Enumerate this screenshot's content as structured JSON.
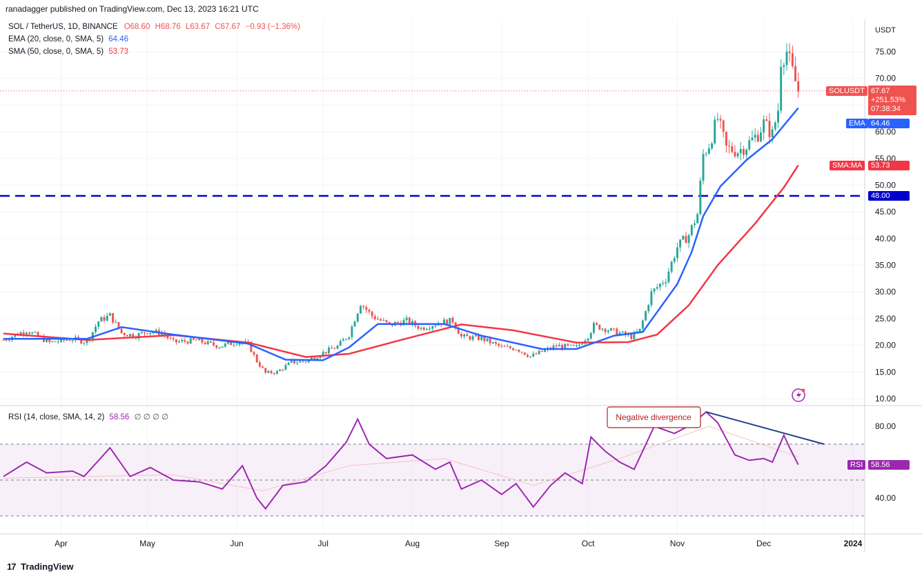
{
  "header": {
    "publisher": "ranadagger published on TradingView.com, Dec 13, 2023 16:21 UTC"
  },
  "price_legend": {
    "symbol": "SOL / TetherUS, 1D, BINANCE",
    "open": "O68.60",
    "high": "H68.76",
    "low": "L63.67",
    "close": "C67.67",
    "change": "−0.93 (−1.36%)",
    "ema_label": "EMA (20, close, 0, SMA, 5)",
    "ema_value": "64.46",
    "sma_label": "SMA (50, close, 0, SMA, 5)",
    "sma_value": "53.73"
  },
  "rsi_legend": {
    "label": "RSI (14, close, SMA, 14, 2)",
    "value": "58.56",
    "extras": "∅ ∅ ∅ ∅"
  },
  "price_axis": {
    "currency": "USDT"
  },
  "price_tags": {
    "symbol_tag": "SOLUSDT",
    "price": "67.67",
    "change_pct": "+251.53%",
    "countdown": "07:38:34",
    "ema_tag": "EMA",
    "ema_value": "64.46",
    "sma_tag": "SMA:MA",
    "sma_value": "53.73",
    "level": "48.00",
    "rsi_tag": "RSI",
    "rsi_value": "58.56"
  },
  "annotation": "Negative divergence",
  "footer": {
    "brand": "TradingView"
  },
  "colors": {
    "up": "#26a69a",
    "down": "#ef5350",
    "ema": "#2962ff",
    "sma": "#f23645",
    "rsi": "#9c27b0",
    "level_line": "#0000cc",
    "divergence": "#1e3f8a"
  },
  "chart_data": {
    "type": "candlestick",
    "title": "SOL / TetherUS, 1D, BINANCE",
    "price_axis_ticks": [
      10,
      15,
      20,
      25,
      30,
      35,
      40,
      45,
      50,
      55,
      60,
      65,
      70,
      75
    ],
    "price_tick_labels": [
      "10.00",
      "15.00",
      "20.00",
      "25.00",
      "30.00",
      "35.00",
      "40.00",
      "45.00",
      "50.00",
      "55.00",
      "60.00",
      "",
      "70.00",
      "75.00"
    ],
    "rsi_ticks": [
      40,
      80
    ],
    "rsi_tick_labels": [
      "40.00",
      "80.00"
    ],
    "rsi_bands": [
      30,
      50,
      70
    ],
    "x_labels": [
      "Apr",
      "May",
      "Jun",
      "Jul",
      "Aug",
      "Sep",
      "Oct",
      "Nov",
      "Dec",
      "2024"
    ],
    "x_label_dates": [
      "2023-04-01",
      "2023-05-01",
      "2023-06-01",
      "2023-07-01",
      "2023-08-01",
      "2023-09-01",
      "2023-10-01",
      "2023-11-01",
      "2023-12-01",
      "2024-01-01"
    ],
    "horizontal_level": 48.0,
    "close_path": [
      [
        "2023-03-12",
        21
      ],
      [
        "2023-03-20",
        22.8
      ],
      [
        "2023-03-28",
        20.5
      ],
      [
        "2023-04-05",
        21.2
      ],
      [
        "2023-04-10",
        20.6
      ],
      [
        "2023-04-14",
        24.5
      ],
      [
        "2023-04-18",
        25.6
      ],
      [
        "2023-04-22",
        22.3
      ],
      [
        "2023-04-27",
        21.8
      ],
      [
        "2023-05-01",
        22.6
      ],
      [
        "2023-05-06",
        22.3
      ],
      [
        "2023-05-10",
        20.6
      ],
      [
        "2023-05-18",
        20.9
      ],
      [
        "2023-05-26",
        19.8
      ],
      [
        "2023-06-01",
        20.6
      ],
      [
        "2023-06-05",
        20.2
      ],
      [
        "2023-06-08",
        17.0
      ],
      [
        "2023-06-11",
        14.8
      ],
      [
        "2023-06-15",
        15.0
      ],
      [
        "2023-06-20",
        16.8
      ],
      [
        "2023-06-25",
        17.0
      ],
      [
        "2023-07-01",
        18.6
      ],
      [
        "2023-07-06",
        19.8
      ],
      [
        "2023-07-10",
        22.0
      ],
      [
        "2023-07-14",
        27.9
      ],
      [
        "2023-07-18",
        25.5
      ],
      [
        "2023-07-24",
        23.8
      ],
      [
        "2023-07-30",
        24.6
      ],
      [
        "2023-08-04",
        23.2
      ],
      [
        "2023-08-10",
        24.2
      ],
      [
        "2023-08-15",
        24.6
      ],
      [
        "2023-08-18",
        21.6
      ],
      [
        "2023-08-25",
        21.3
      ],
      [
        "2023-09-01",
        19.6
      ],
      [
        "2023-09-06",
        19.4
      ],
      [
        "2023-09-11",
        17.9
      ],
      [
        "2023-09-15",
        18.8
      ],
      [
        "2023-09-20",
        19.9
      ],
      [
        "2023-09-27",
        19.6
      ],
      [
        "2023-10-01",
        21.8
      ],
      [
        "2023-10-03",
        23.7
      ],
      [
        "2023-10-10",
        22.6
      ],
      [
        "2023-10-16",
        21.6
      ],
      [
        "2023-10-19",
        22.8
      ],
      [
        "2023-10-23",
        29.8
      ],
      [
        "2023-10-28",
        32.5
      ],
      [
        "2023-11-01",
        38.4
      ],
      [
        "2023-11-05",
        40.7
      ],
      [
        "2023-11-08",
        44.6
      ],
      [
        "2023-11-10",
        55.7
      ],
      [
        "2023-11-12",
        57.6
      ],
      [
        "2023-11-15",
        62.5
      ],
      [
        "2023-11-18",
        56.9
      ],
      [
        "2023-11-22",
        56.4
      ],
      [
        "2023-11-25",
        57.4
      ],
      [
        "2023-11-29",
        59.6
      ],
      [
        "2023-12-01",
        61.6
      ],
      [
        "2023-12-04",
        59.5
      ],
      [
        "2023-12-06",
        64.2
      ],
      [
        "2023-12-07",
        73.5
      ],
      [
        "2023-12-09",
        75.1
      ],
      [
        "2023-12-11",
        71.2
      ],
      [
        "2023-12-13",
        67.67
      ]
    ],
    "ema20_path": [
      [
        "2023-03-12",
        21.2
      ],
      [
        "2023-04-10",
        21.2
      ],
      [
        "2023-04-22",
        23.4
      ],
      [
        "2023-05-10",
        22.0
      ],
      [
        "2023-06-05",
        20.3
      ],
      [
        "2023-06-18",
        17.3
      ],
      [
        "2023-07-01",
        17.2
      ],
      [
        "2023-07-10",
        19.6
      ],
      [
        "2023-07-20",
        24.0
      ],
      [
        "2023-08-12",
        24.0
      ],
      [
        "2023-08-25",
        21.8
      ],
      [
        "2023-09-15",
        19.3
      ],
      [
        "2023-09-27",
        19.3
      ],
      [
        "2023-10-10",
        21.8
      ],
      [
        "2023-10-20",
        22.5
      ],
      [
        "2023-11-01",
        31.5
      ],
      [
        "2023-11-06",
        37.5
      ],
      [
        "2023-11-10",
        44.2
      ],
      [
        "2023-11-16",
        49.8
      ],
      [
        "2023-11-25",
        54.7
      ],
      [
        "2023-12-04",
        58.6
      ],
      [
        "2023-12-13",
        64.46
      ]
    ],
    "sma50_path": [
      [
        "2023-03-12",
        22.2
      ],
      [
        "2023-04-10",
        21.0
      ],
      [
        "2023-05-10",
        21.9
      ],
      [
        "2023-06-05",
        20.5
      ],
      [
        "2023-06-25",
        17.8
      ],
      [
        "2023-07-10",
        18.4
      ],
      [
        "2023-07-28",
        21.0
      ],
      [
        "2023-08-18",
        23.9
      ],
      [
        "2023-09-05",
        22.8
      ],
      [
        "2023-09-27",
        20.5
      ],
      [
        "2023-10-15",
        20.6
      ],
      [
        "2023-10-25",
        22.0
      ],
      [
        "2023-11-05",
        27.5
      ],
      [
        "2023-11-15",
        35.0
      ],
      [
        "2023-11-28",
        42.8
      ],
      [
        "2023-12-08",
        49.6
      ],
      [
        "2023-12-13",
        53.73
      ]
    ],
    "rsi_path": [
      [
        "2023-03-12",
        52
      ],
      [
        "2023-03-20",
        60
      ],
      [
        "2023-03-27",
        54
      ],
      [
        "2023-04-05",
        55
      ],
      [
        "2023-04-09",
        52
      ],
      [
        "2023-04-18",
        68
      ],
      [
        "2023-04-25",
        52
      ],
      [
        "2023-05-02",
        57
      ],
      [
        "2023-05-10",
        50
      ],
      [
        "2023-05-19",
        49
      ],
      [
        "2023-05-27",
        45
      ],
      [
        "2023-06-03",
        58
      ],
      [
        "2023-06-08",
        40
      ],
      [
        "2023-06-11",
        34
      ],
      [
        "2023-06-17",
        47
      ],
      [
        "2023-06-25",
        49
      ],
      [
        "2023-07-02",
        58
      ],
      [
        "2023-07-09",
        71
      ],
      [
        "2023-07-13",
        84
      ],
      [
        "2023-07-17",
        70
      ],
      [
        "2023-07-23",
        62
      ],
      [
        "2023-08-01",
        64
      ],
      [
        "2023-08-09",
        56
      ],
      [
        "2023-08-14",
        60
      ],
      [
        "2023-08-18",
        45
      ],
      [
        "2023-08-25",
        50
      ],
      [
        "2023-09-01",
        42
      ],
      [
        "2023-09-06",
        48
      ],
      [
        "2023-09-12",
        35
      ],
      [
        "2023-09-18",
        47
      ],
      [
        "2023-09-23",
        54
      ],
      [
        "2023-09-29",
        48
      ],
      [
        "2023-10-02",
        74
      ],
      [
        "2023-10-07",
        66
      ],
      [
        "2023-10-12",
        60
      ],
      [
        "2023-10-17",
        56
      ],
      [
        "2023-10-24",
        80
      ],
      [
        "2023-10-31",
        76
      ],
      [
        "2023-11-06",
        81
      ],
      [
        "2023-11-11",
        88
      ],
      [
        "2023-11-15",
        82
      ],
      [
        "2023-11-21",
        64
      ],
      [
        "2023-11-26",
        61
      ],
      [
        "2023-12-01",
        62
      ],
      [
        "2023-12-04",
        60
      ],
      [
        "2023-12-08",
        75
      ],
      [
        "2023-12-10",
        68
      ],
      [
        "2023-12-13",
        58.56
      ]
    ],
    "rsi_sma_path": [
      [
        "2023-03-12",
        51
      ],
      [
        "2023-05-10",
        53
      ],
      [
        "2023-06-10",
        44
      ],
      [
        "2023-07-10",
        58
      ],
      [
        "2023-08-12",
        62
      ],
      [
        "2023-09-12",
        47
      ],
      [
        "2023-10-12",
        62
      ],
      [
        "2023-11-12",
        80
      ],
      [
        "2023-12-13",
        63
      ]
    ],
    "divergence_line": [
      [
        "2023-11-11",
        88
      ],
      [
        "2023-12-22",
        70
      ]
    ]
  }
}
